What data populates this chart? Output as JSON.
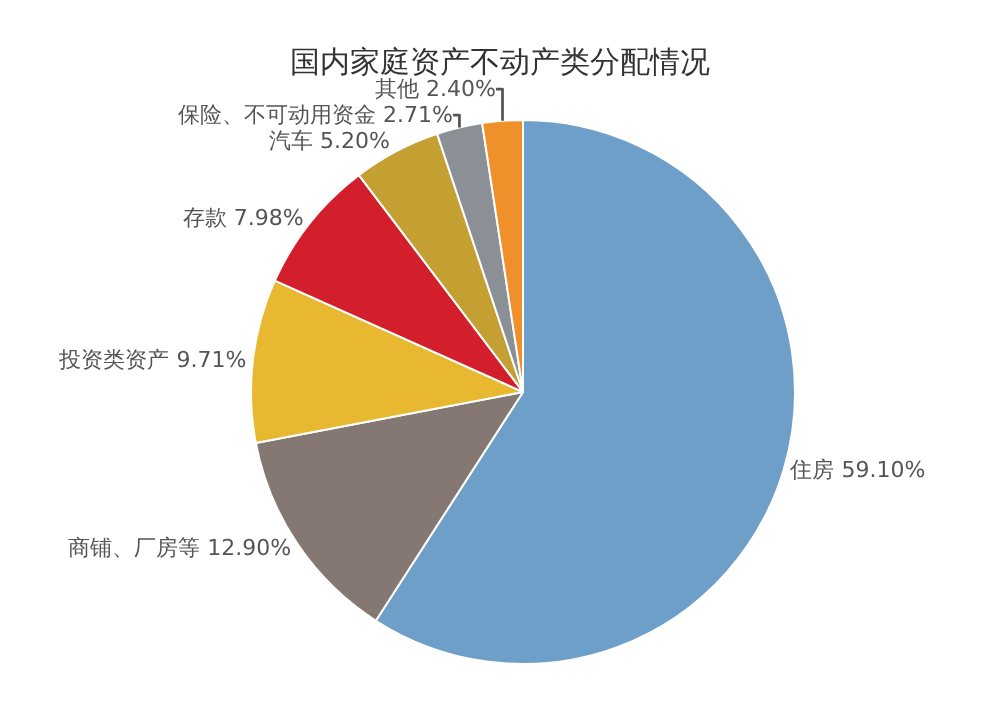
{
  "chart_data": {
    "type": "pie",
    "title": "国内家庭资产不动产类分配情况",
    "categories": [
      "住房",
      "商铺、厂房等",
      "投资类资产",
      "存款",
      "汽车",
      "保险、不可动用资金",
      "其他"
    ],
    "values": [
      59.1,
      12.9,
      9.71,
      7.98,
      5.2,
      2.71,
      2.4
    ],
    "value_labels": [
      "59.10%",
      "12.90%",
      "9.71%",
      "7.98%",
      "5.20%",
      "2.71%",
      "2.40%"
    ],
    "colors": [
      "#6e9fc9",
      "#857872",
      "#e8b830",
      "#d31f2b",
      "#c4a032",
      "#8b9096",
      "#f0902a"
    ],
    "legend": false
  }
}
